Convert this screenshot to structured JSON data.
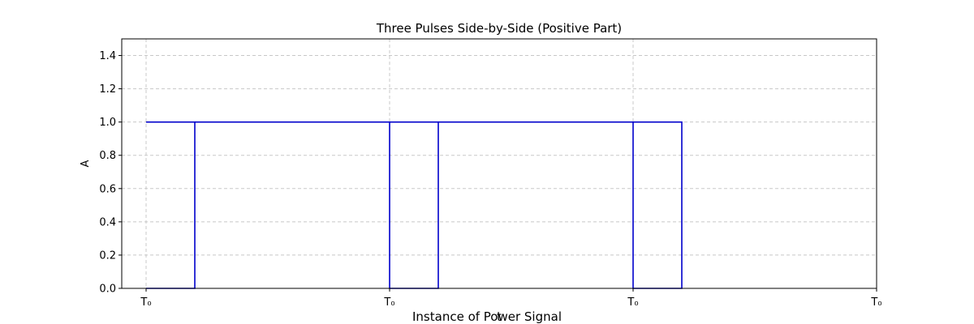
{
  "chart_data": {
    "type": "line",
    "title": "Three Pulses Side-by-Side (Positive Part)",
    "xlabel": "Instance of Power Signal",
    "xlabel_overlay": "t",
    "ylabel": "A",
    "xlim": [
      -0.1,
      3.0
    ],
    "ylim": [
      0.0,
      1.5
    ],
    "grid": true,
    "x_ticks": [
      {
        "value": 0,
        "label": "T₀"
      },
      {
        "value": 1,
        "label": "T₀"
      },
      {
        "value": 2,
        "label": "T₀"
      },
      {
        "value": 3,
        "label": "T₀"
      }
    ],
    "y_ticks": [
      {
        "value": 0.0,
        "label": "0.0"
      },
      {
        "value": 0.2,
        "label": "0.2"
      },
      {
        "value": 0.4,
        "label": "0.4"
      },
      {
        "value": 0.6,
        "label": "0.6"
      },
      {
        "value": 0.8,
        "label": "0.8"
      },
      {
        "value": 1.0,
        "label": "1.0"
      },
      {
        "value": 1.2,
        "label": "1.2"
      },
      {
        "value": 1.4,
        "label": "1.4"
      }
    ],
    "series": [
      {
        "color": "#0000cc",
        "segments": [
          {
            "x": [
              0,
              0.2,
              0.2,
              0
            ],
            "y": [
              0,
              0,
              1,
              1
            ]
          },
          {
            "x": [
              0.2,
              1,
              1,
              1.2,
              1.2,
              1
            ],
            "y": [
              1,
              1,
              0,
              0,
              1,
              1
            ]
          },
          {
            "x": [
              1.2,
              2,
              2,
              2.2,
              2.2,
              2
            ],
            "y": [
              1,
              1,
              0,
              0,
              1,
              1
            ]
          }
        ]
      }
    ]
  }
}
